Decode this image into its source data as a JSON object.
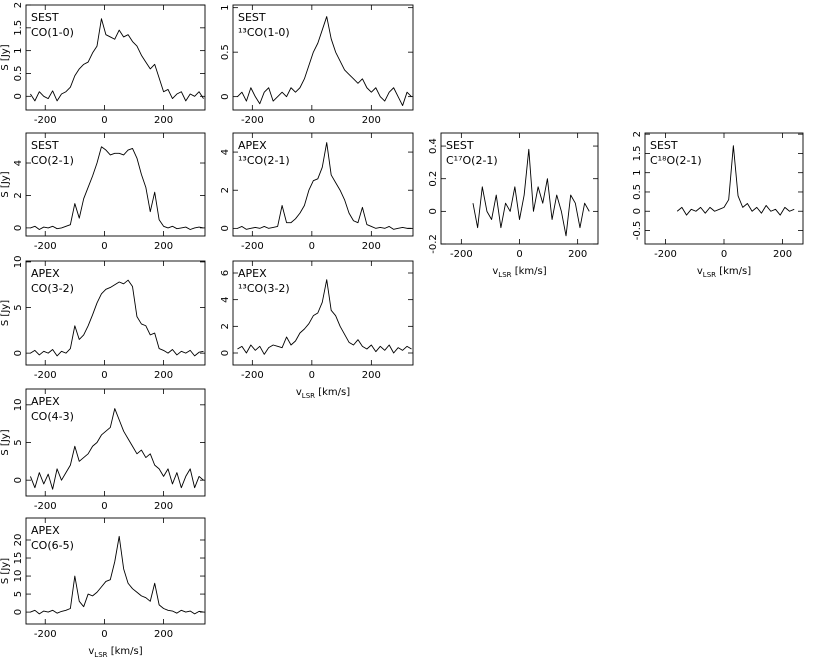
{
  "chart_data": [
    {
      "type": "line",
      "title": "SEST",
      "subtitle": "CO(1-0)",
      "ylabel": "S [Jy]",
      "color": "#000000",
      "x": [
        -250,
        -235,
        -220,
        -205,
        -190,
        -175,
        -160,
        -145,
        -130,
        -115,
        -100,
        -85,
        -70,
        -55,
        -40,
        -25,
        -10,
        5,
        20,
        35,
        50,
        65,
        80,
        95,
        110,
        125,
        140,
        155,
        170,
        185,
        200,
        215,
        230,
        245,
        260,
        275,
        290,
        305,
        320,
        335
      ],
      "values": [
        0.05,
        -0.1,
        0.1,
        0.0,
        -0.05,
        0.12,
        -0.1,
        0.05,
        0.1,
        0.2,
        0.45,
        0.6,
        0.7,
        0.75,
        0.95,
        1.1,
        1.7,
        1.35,
        1.3,
        1.25,
        1.45,
        1.3,
        1.35,
        1.2,
        1.1,
        0.9,
        0.75,
        0.6,
        0.7,
        0.4,
        0.1,
        0.15,
        -0.05,
        0.05,
        0.1,
        -0.1,
        0.05,
        0.0,
        0.1,
        -0.05
      ],
      "xlim": [
        -265,
        340
      ],
      "xticks": [
        -200,
        0,
        200
      ],
      "ylim": [
        -0.3,
        2
      ],
      "yticks": [
        0,
        0.5,
        1,
        1.5,
        2
      ]
    },
    {
      "type": "line",
      "title": "SEST",
      "subtitle": "¹³CO(1-0)",
      "color": "#000000",
      "x": [
        -250,
        -235,
        -220,
        -205,
        -190,
        -175,
        -160,
        -145,
        -130,
        -115,
        -100,
        -85,
        -70,
        -55,
        -40,
        -25,
        -10,
        5,
        20,
        35,
        50,
        65,
        80,
        95,
        110,
        125,
        140,
        155,
        170,
        185,
        200,
        215,
        230,
        245,
        260,
        275,
        290,
        305,
        320,
        335
      ],
      "values": [
        0.0,
        0.05,
        -0.05,
        0.1,
        0.0,
        -0.08,
        0.05,
        0.1,
        -0.05,
        0.0,
        0.05,
        0.0,
        0.1,
        0.05,
        0.1,
        0.2,
        0.35,
        0.5,
        0.6,
        0.75,
        0.9,
        0.65,
        0.5,
        0.4,
        0.3,
        0.25,
        0.2,
        0.15,
        0.2,
        0.1,
        0.05,
        0.1,
        0.0,
        -0.05,
        0.05,
        0.1,
        0.0,
        -0.1,
        0.05,
        0.0
      ],
      "xlim": [
        -265,
        340
      ],
      "xticks": [
        -200,
        0,
        200
      ],
      "ylim": [
        -0.15,
        1.03
      ],
      "yticks": [
        0,
        0.5,
        1
      ]
    },
    {
      "type": "line",
      "title": "SEST",
      "subtitle": "CO(2-1)",
      "ylabel": "S [Jy]",
      "color": "#000000",
      "x": [
        -250,
        -235,
        -220,
        -205,
        -190,
        -175,
        -160,
        -145,
        -130,
        -115,
        -100,
        -85,
        -70,
        -55,
        -40,
        -25,
        -10,
        5,
        20,
        35,
        50,
        65,
        80,
        95,
        110,
        125,
        140,
        155,
        170,
        185,
        200,
        215,
        230,
        245,
        260,
        275,
        290,
        305,
        320,
        335
      ],
      "values": [
        0.0,
        0.1,
        -0.1,
        0.05,
        0.0,
        0.1,
        -0.05,
        0.0,
        0.1,
        0.2,
        1.5,
        0.6,
        1.8,
        2.5,
        3.2,
        4.0,
        5.0,
        4.8,
        4.5,
        4.6,
        4.6,
        4.5,
        4.8,
        4.9,
        4.3,
        3.3,
        2.5,
        1.0,
        2.2,
        0.5,
        0.1,
        0.0,
        0.1,
        -0.05,
        0.0,
        0.05,
        -0.1,
        0.0,
        0.05,
        0.0
      ],
      "xlim": [
        -265,
        340
      ],
      "xticks": [
        -200,
        0,
        200
      ],
      "ylim": [
        -0.5,
        5.85
      ],
      "yticks": [
        0,
        2,
        4
      ]
    },
    {
      "type": "line",
      "title": "APEX",
      "subtitle": "¹³CO(2-1)",
      "color": "#000000",
      "x": [
        -250,
        -235,
        -220,
        -205,
        -190,
        -175,
        -160,
        -145,
        -130,
        -115,
        -100,
        -85,
        -70,
        -55,
        -40,
        -25,
        -10,
        5,
        20,
        35,
        50,
        65,
        80,
        95,
        110,
        125,
        140,
        155,
        170,
        185,
        200,
        215,
        230,
        245,
        260,
        275,
        290,
        305,
        320,
        335
      ],
      "values": [
        0.0,
        0.1,
        -0.05,
        0.0,
        0.05,
        0.0,
        0.1,
        0.0,
        0.05,
        0.1,
        1.2,
        0.3,
        0.3,
        0.5,
        0.8,
        1.2,
        2.0,
        2.5,
        2.6,
        3.2,
        4.5,
        2.8,
        2.4,
        2.0,
        1.5,
        0.8,
        0.4,
        0.3,
        1.1,
        0.2,
        0.1,
        0.0,
        0.05,
        0.0,
        0.1,
        -0.05,
        0.0,
        0.05,
        0.0,
        0.0
      ],
      "xlim": [
        -265,
        340
      ],
      "xticks": [
        -200,
        0,
        200
      ],
      "ylim": [
        -0.4,
        5
      ],
      "yticks": [
        0,
        2,
        4
      ]
    },
    {
      "type": "line",
      "title": "SEST",
      "subtitle": "C¹⁷O(2-1)",
      "xlabel": "v",
      "xlabel_sub": "LSR",
      "xlabel_unit": " [km/s]",
      "color": "#000000",
      "x": [
        -160,
        -144,
        -128,
        -112,
        -96,
        -80,
        -64,
        -48,
        -32,
        -16,
        0,
        16,
        32,
        48,
        64,
        80,
        96,
        112,
        128,
        144,
        160,
        176,
        192,
        208,
        224,
        240
      ],
      "values": [
        0.05,
        -0.1,
        0.15,
        0.0,
        -0.05,
        0.1,
        -0.1,
        0.05,
        0.0,
        0.15,
        -0.05,
        0.1,
        0.38,
        0.0,
        0.15,
        0.05,
        0.2,
        -0.05,
        0.1,
        0.0,
        -0.15,
        0.1,
        0.05,
        -0.1,
        0.05,
        0.0
      ],
      "xlim": [
        -270,
        270
      ],
      "xticks": [
        -200,
        0,
        200
      ],
      "ylim": [
        -0.2,
        0.48
      ],
      "yticks": [
        -0.2,
        0,
        0.2,
        0.4
      ]
    },
    {
      "type": "line",
      "title": "SEST",
      "subtitle": "C¹⁸O(2-1)",
      "xlabel": "v",
      "xlabel_sub": "LSR",
      "xlabel_unit": " [km/s]",
      "color": "#000000",
      "x": [
        -160,
        -144,
        -128,
        -112,
        -96,
        -80,
        -64,
        -48,
        -32,
        -16,
        0,
        16,
        32,
        48,
        64,
        80,
        96,
        112,
        128,
        144,
        160,
        176,
        192,
        208,
        224,
        240
      ],
      "values": [
        0.0,
        0.1,
        -0.1,
        0.05,
        0.0,
        0.1,
        -0.05,
        0.1,
        0.0,
        0.05,
        0.1,
        0.3,
        1.7,
        0.4,
        0.1,
        0.2,
        0.0,
        0.1,
        -0.05,
        0.15,
        0.0,
        0.05,
        -0.1,
        0.1,
        0.0,
        0.05
      ],
      "xlim": [
        -270,
        270
      ],
      "xticks": [
        -200,
        0,
        200
      ],
      "ylim": [
        -0.85,
        2.03
      ],
      "yticks": [
        -0.5,
        0,
        0.5,
        1,
        1.5,
        2
      ]
    },
    {
      "type": "line",
      "title": "APEX",
      "subtitle": "CO(3-2)",
      "ylabel": "S [Jy]",
      "color": "#000000",
      "x": [
        -250,
        -235,
        -220,
        -205,
        -190,
        -175,
        -160,
        -145,
        -130,
        -115,
        -100,
        -85,
        -70,
        -55,
        -40,
        -25,
        -10,
        5,
        20,
        35,
        50,
        65,
        80,
        95,
        110,
        125,
        140,
        155,
        170,
        185,
        200,
        215,
        230,
        245,
        260,
        275,
        290,
        305,
        320,
        335
      ],
      "values": [
        0.0,
        0.3,
        -0.2,
        0.2,
        0.0,
        0.4,
        -0.3,
        0.2,
        0.0,
        0.5,
        3.0,
        1.5,
        2.0,
        3.0,
        4.2,
        5.5,
        6.5,
        7.0,
        7.2,
        7.5,
        7.8,
        7.6,
        8.0,
        7.3,
        4.0,
        3.2,
        3.0,
        2.0,
        2.2,
        0.5,
        0.3,
        0.0,
        0.4,
        -0.2,
        0.2,
        0.0,
        0.3,
        -0.3,
        0.1,
        0.2
      ],
      "xlim": [
        -265,
        340
      ],
      "xticks": [
        -200,
        0,
        200
      ],
      "ylim": [
        -1.3,
        10.1
      ],
      "yticks": [
        0,
        5,
        10
      ]
    },
    {
      "type": "line",
      "title": "APEX",
      "subtitle": "¹³CO(3-2)",
      "xlabel": "v",
      "xlabel_sub": "LSR",
      "xlabel_unit": " [km/s]",
      "color": "#000000",
      "x": [
        -250,
        -235,
        -220,
        -205,
        -190,
        -175,
        -160,
        -145,
        -130,
        -115,
        -100,
        -85,
        -70,
        -55,
        -40,
        -25,
        -10,
        5,
        20,
        35,
        50,
        65,
        80,
        95,
        110,
        125,
        140,
        155,
        170,
        185,
        200,
        215,
        230,
        245,
        260,
        275,
        290,
        305,
        320,
        335
      ],
      "values": [
        0.3,
        0.5,
        0.0,
        0.6,
        0.2,
        0.5,
        -0.1,
        0.4,
        0.6,
        0.5,
        0.4,
        1.2,
        0.6,
        0.9,
        1.5,
        1.8,
        2.2,
        2.8,
        3.0,
        3.8,
        5.5,
        3.2,
        2.8,
        2.0,
        1.4,
        0.8,
        0.6,
        1.0,
        0.5,
        0.3,
        0.6,
        0.1,
        0.5,
        0.2,
        0.6,
        0.0,
        0.4,
        0.2,
        0.5,
        0.3
      ],
      "xlim": [
        -265,
        340
      ],
      "xticks": [
        -200,
        0,
        200
      ],
      "ylim": [
        -0.9,
        6.9
      ],
      "yticks": [
        0,
        2,
        4,
        6
      ]
    },
    {
      "type": "line",
      "title": "APEX",
      "subtitle": "CO(4-3)",
      "ylabel": "S [Jy]",
      "color": "#000000",
      "x": [
        -250,
        -235,
        -220,
        -205,
        -190,
        -175,
        -160,
        -145,
        -130,
        -115,
        -100,
        -85,
        -70,
        -55,
        -40,
        -25,
        -10,
        5,
        20,
        35,
        50,
        65,
        80,
        95,
        110,
        125,
        140,
        155,
        170,
        185,
        200,
        215,
        230,
        245,
        260,
        275,
        290,
        305,
        320,
        335
      ],
      "values": [
        0.5,
        -1.0,
        1.0,
        -0.5,
        0.8,
        -1.2,
        1.5,
        0.0,
        1.0,
        2.0,
        4.5,
        2.5,
        3.0,
        3.5,
        4.5,
        5.0,
        6.0,
        6.5,
        7.0,
        9.5,
        8.0,
        6.5,
        5.5,
        4.5,
        3.5,
        4.0,
        3.0,
        3.5,
        2.0,
        1.5,
        0.5,
        1.5,
        -0.5,
        1.0,
        -1.0,
        0.5,
        1.5,
        -1.0,
        0.5,
        0.0
      ],
      "xlim": [
        -265,
        340
      ],
      "xticks": [
        -200,
        0,
        200
      ],
      "ylim": [
        -2.1,
        12.1
      ],
      "yticks": [
        0,
        5,
        10
      ]
    },
    {
      "type": "line",
      "title": "APEX",
      "subtitle": "CO(6-5)",
      "ylabel": "S [Jy]",
      "xlabel": "v",
      "xlabel_sub": "LSR",
      "xlabel_unit": " [km/s]",
      "color": "#000000",
      "x": [
        -250,
        -235,
        -220,
        -205,
        -190,
        -175,
        -160,
        -145,
        -130,
        -115,
        -100,
        -85,
        -70,
        -55,
        -40,
        -25,
        -10,
        5,
        20,
        35,
        50,
        65,
        80,
        95,
        110,
        125,
        140,
        155,
        170,
        185,
        200,
        215,
        230,
        245,
        260,
        275,
        290,
        305,
        320,
        335
      ],
      "values": [
        0.0,
        0.5,
        -0.5,
        0.3,
        0.0,
        0.5,
        -0.3,
        0.2,
        0.5,
        1.0,
        10.0,
        3.0,
        1.5,
        5.0,
        4.5,
        5.5,
        7.0,
        8.5,
        9.0,
        14.0,
        21.0,
        12.0,
        8.0,
        6.5,
        5.5,
        4.5,
        4.0,
        3.0,
        8.0,
        2.0,
        1.0,
        0.5,
        0.3,
        -0.3,
        0.5,
        0.0,
        0.3,
        -0.5,
        0.2,
        0.0
      ],
      "xlim": [
        -265,
        340
      ],
      "xticks": [
        -200,
        0,
        200
      ],
      "ylim": [
        -3.3,
        26.1
      ],
      "yticks": [
        0,
        5,
        10,
        15,
        20
      ]
    }
  ]
}
